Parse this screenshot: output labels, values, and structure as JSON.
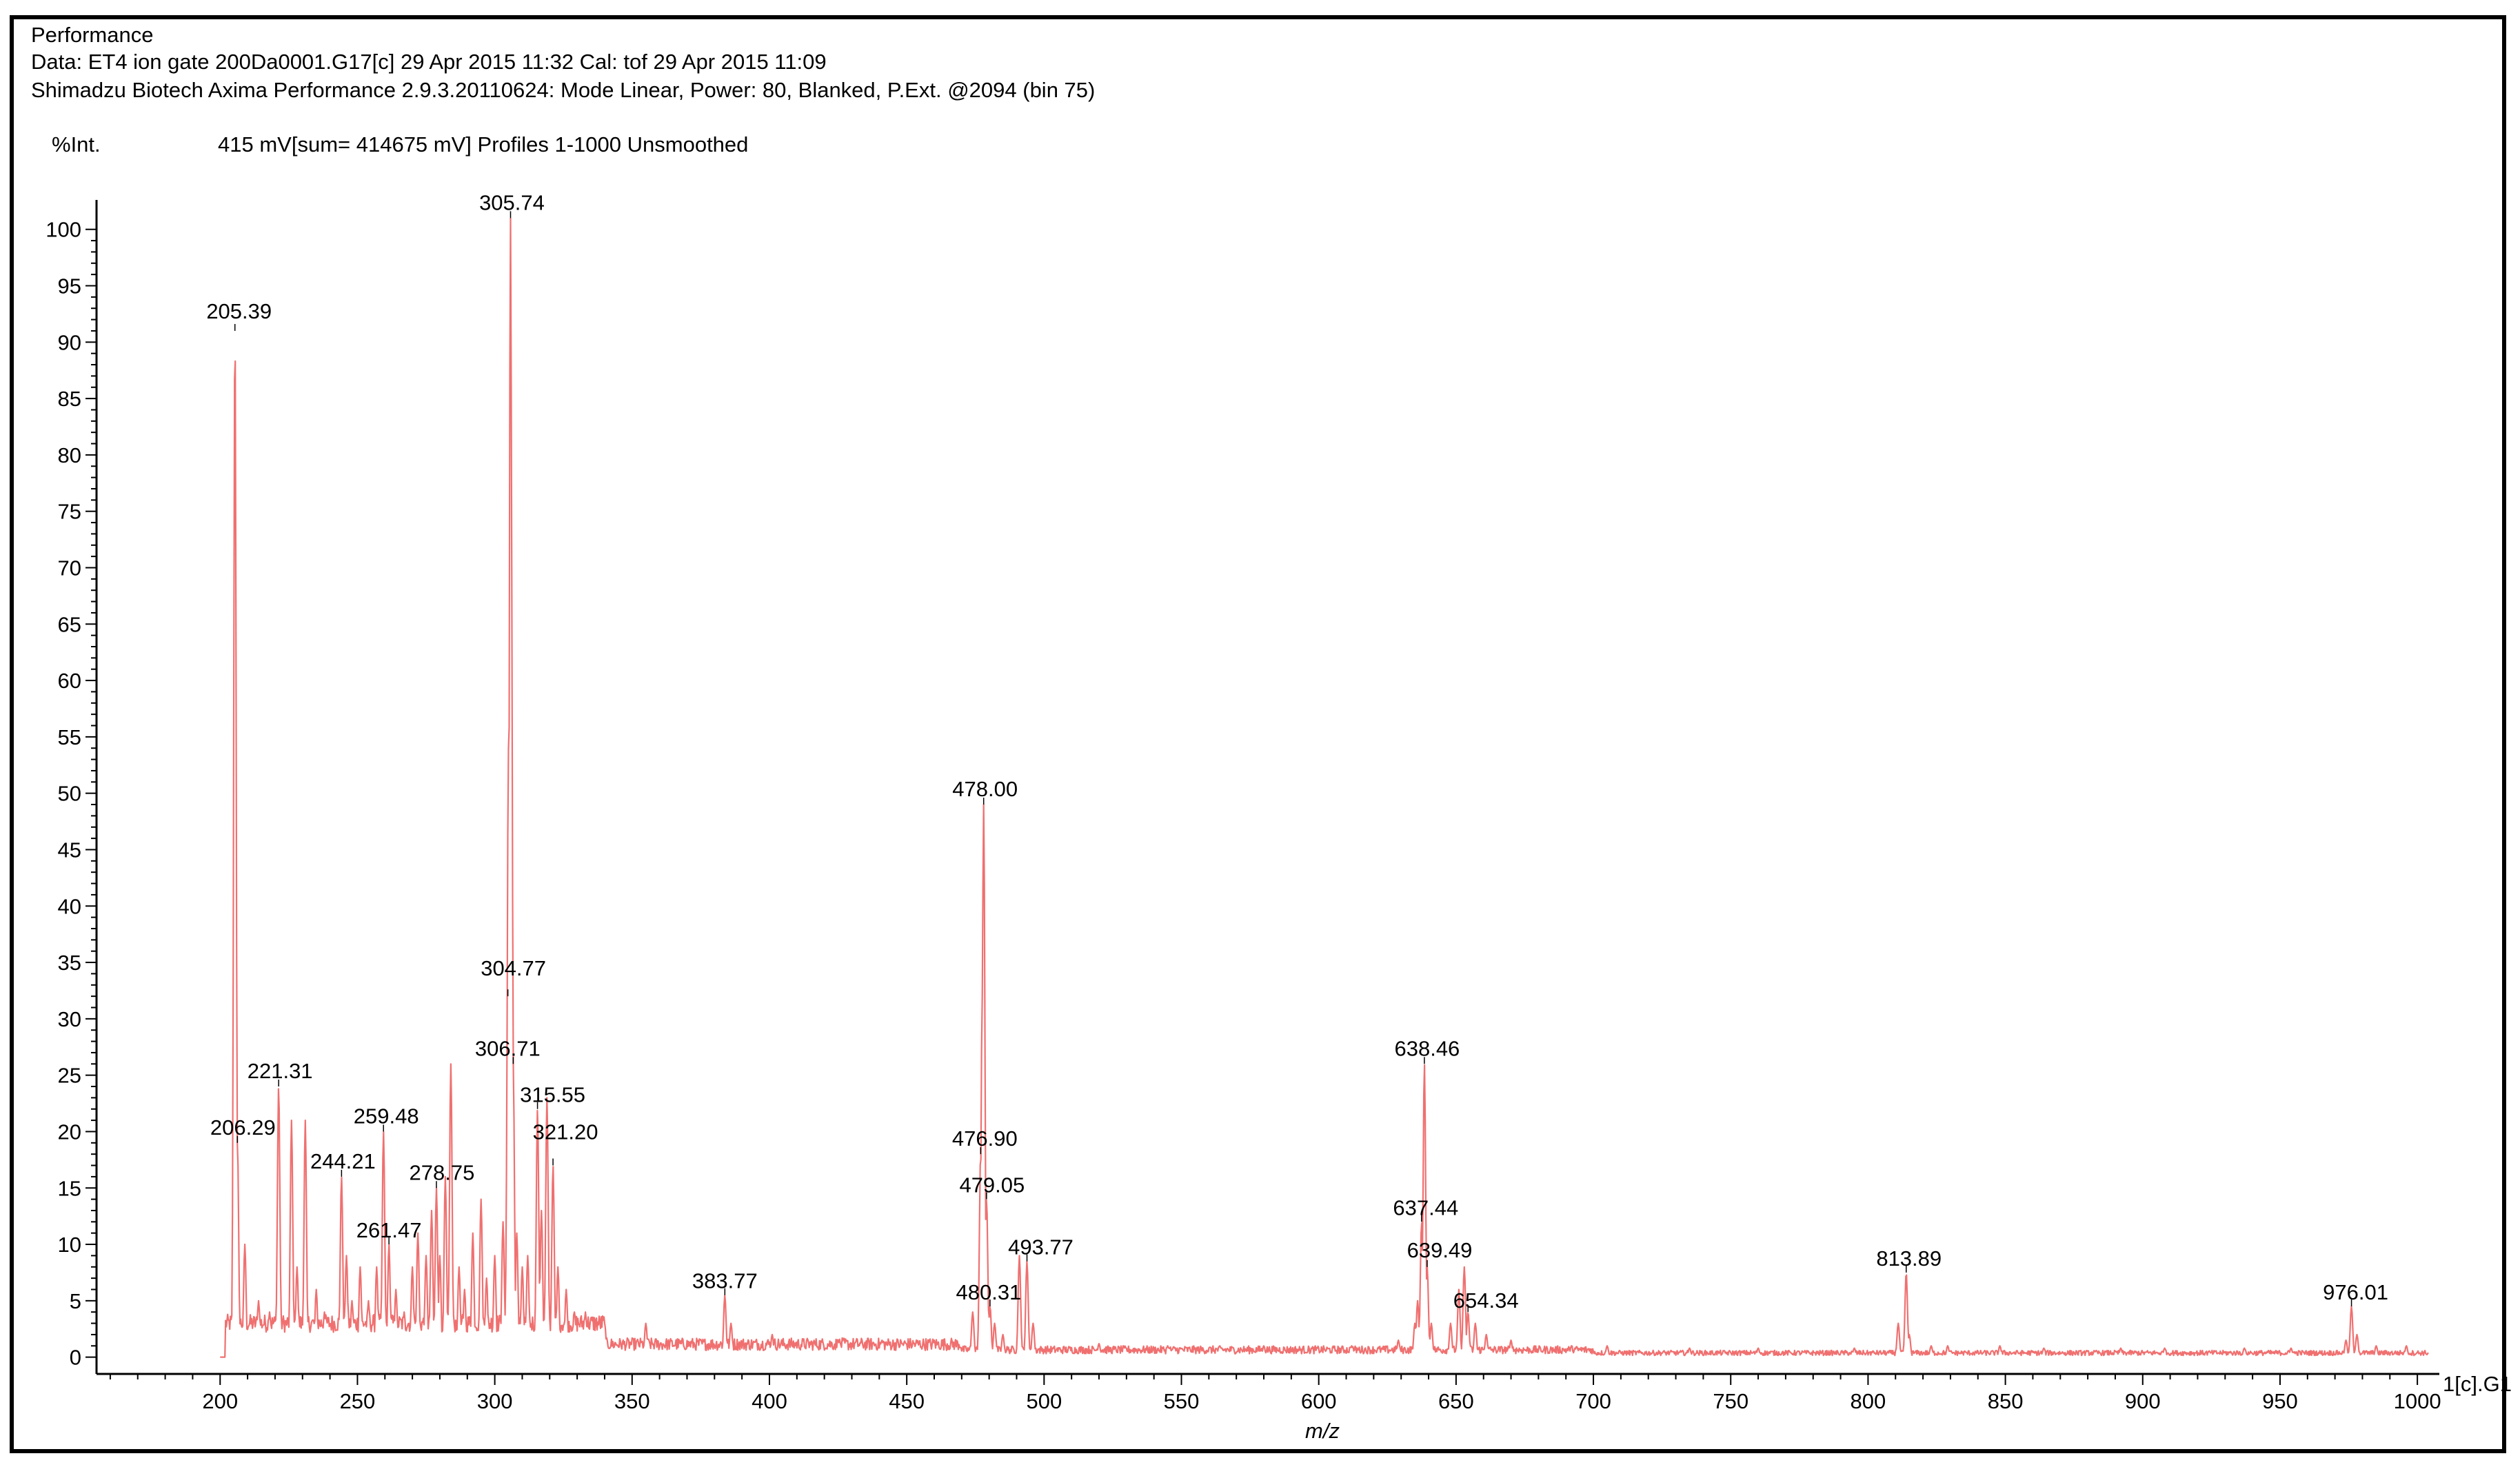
{
  "header": {
    "title": "Performance",
    "data_line": "Data: ET4 ion gate 200Da0001.G17[c] 29 Apr 2015 11:32 Cal: tof 29 Apr 2015 11:09",
    "instrument_line": "Shimadzu Biotech Axima Performance 2.9.3.20110624: Mode Linear, Power: 80, Blanked, P.Ext. @2094 (bin 75)",
    "y_unit": "%Int.",
    "summary": "415 mV[sum= 414675 mV]  Profiles 1-1000 Unsmoothed"
  },
  "colors": {
    "trace": "#f07070",
    "axis": "#000000",
    "background": "#ffffff"
  },
  "chart_data": {
    "type": "line",
    "title": "Performance",
    "xlabel": "m/z",
    "ylabel": "%Int.",
    "xlim": [
      155,
      1008
    ],
    "ylim": [
      -1,
      102
    ],
    "x_ticks": [
      200,
      250,
      300,
      350,
      400,
      450,
      500,
      550,
      600,
      650,
      700,
      750,
      800,
      850,
      900,
      950,
      1000
    ],
    "y_ticks": [
      0,
      5,
      10,
      15,
      20,
      25,
      30,
      35,
      40,
      45,
      50,
      55,
      60,
      65,
      70,
      75,
      80,
      85,
      90,
      95,
      100
    ],
    "trace_end_label": "1[c].G1",
    "peaks": [
      {
        "x": 205.39,
        "y": 91,
        "label": "205.39"
      },
      {
        "x": 206.29,
        "y": 19,
        "label": "206.29"
      },
      {
        "x": 221.31,
        "y": 24,
        "label": "221.31"
      },
      {
        "x": 244.21,
        "y": 16,
        "label": "244.21"
      },
      {
        "x": 259.48,
        "y": 20,
        "label": "259.48"
      },
      {
        "x": 261.47,
        "y": 10,
        "label": "261.47"
      },
      {
        "x": 278.75,
        "y": 15,
        "label": "278.75"
      },
      {
        "x": 304.77,
        "y": 32,
        "label": "304.77"
      },
      {
        "x": 305.74,
        "y": 101,
        "label": "305.74"
      },
      {
        "x": 306.71,
        "y": 26,
        "label": "306.71"
      },
      {
        "x": 315.55,
        "y": 22,
        "label": "315.55"
      },
      {
        "x": 321.2,
        "y": 17,
        "label": "321.20"
      },
      {
        "x": 383.77,
        "y": 5.5,
        "label": "383.77"
      },
      {
        "x": 476.9,
        "y": 18,
        "label": "476.90"
      },
      {
        "x": 478.0,
        "y": 49,
        "label": "478.00"
      },
      {
        "x": 479.05,
        "y": 14,
        "label": "479.05"
      },
      {
        "x": 480.31,
        "y": 4.5,
        "label": "480.31"
      },
      {
        "x": 493.77,
        "y": 8.5,
        "label": "493.77"
      },
      {
        "x": 637.44,
        "y": 12,
        "label": "637.44"
      },
      {
        "x": 638.46,
        "y": 26,
        "label": "638.46"
      },
      {
        "x": 639.49,
        "y": 8,
        "label": "639.49"
      },
      {
        "x": 654.34,
        "y": 4,
        "label": "654.34"
      },
      {
        "x": 813.89,
        "y": 7.5,
        "label": "813.89"
      },
      {
        "x": 976.01,
        "y": 4.5,
        "label": "976.01"
      }
    ],
    "unlabeled_peaks": [
      {
        "x": 209,
        "y": 10
      },
      {
        "x": 214,
        "y": 5
      },
      {
        "x": 218,
        "y": 4
      },
      {
        "x": 226,
        "y": 21
      },
      {
        "x": 228,
        "y": 8
      },
      {
        "x": 231,
        "y": 21
      },
      {
        "x": 235,
        "y": 6
      },
      {
        "x": 238,
        "y": 4
      },
      {
        "x": 246,
        "y": 9
      },
      {
        "x": 248,
        "y": 5
      },
      {
        "x": 251,
        "y": 8
      },
      {
        "x": 254,
        "y": 5
      },
      {
        "x": 257,
        "y": 8
      },
      {
        "x": 264,
        "y": 6
      },
      {
        "x": 267,
        "y": 4
      },
      {
        "x": 270,
        "y": 8
      },
      {
        "x": 272,
        "y": 11
      },
      {
        "x": 275,
        "y": 9
      },
      {
        "x": 277,
        "y": 13
      },
      {
        "x": 280,
        "y": 9
      },
      {
        "x": 282,
        "y": 16
      },
      {
        "x": 284,
        "y": 26
      },
      {
        "x": 287,
        "y": 8
      },
      {
        "x": 289,
        "y": 6
      },
      {
        "x": 292,
        "y": 11
      },
      {
        "x": 295,
        "y": 14
      },
      {
        "x": 297,
        "y": 7
      },
      {
        "x": 300,
        "y": 9
      },
      {
        "x": 303,
        "y": 12
      },
      {
        "x": 305,
        "y": 54
      },
      {
        "x": 306,
        "y": 75
      },
      {
        "x": 308,
        "y": 11
      },
      {
        "x": 310,
        "y": 8
      },
      {
        "x": 312,
        "y": 9
      },
      {
        "x": 317,
        "y": 13
      },
      {
        "x": 319,
        "y": 23
      },
      {
        "x": 323,
        "y": 8
      },
      {
        "x": 326,
        "y": 6
      },
      {
        "x": 329,
        "y": 4
      },
      {
        "x": 333,
        "y": 4
      },
      {
        "x": 340,
        "y": 3
      },
      {
        "x": 355,
        "y": 3
      },
      {
        "x": 386,
        "y": 3
      },
      {
        "x": 401,
        "y": 2
      },
      {
        "x": 425,
        "y": 1.5
      },
      {
        "x": 441,
        "y": 1.5
      },
      {
        "x": 460,
        "y": 1.5
      },
      {
        "x": 474,
        "y": 4
      },
      {
        "x": 477.5,
        "y": 32
      },
      {
        "x": 482,
        "y": 3
      },
      {
        "x": 485,
        "y": 2
      },
      {
        "x": 491,
        "y": 9
      },
      {
        "x": 496,
        "y": 3
      },
      {
        "x": 520,
        "y": 1.2
      },
      {
        "x": 545,
        "y": 1
      },
      {
        "x": 580,
        "y": 1
      },
      {
        "x": 612,
        "y": 1
      },
      {
        "x": 629,
        "y": 1.5
      },
      {
        "x": 635,
        "y": 3
      },
      {
        "x": 636,
        "y": 5
      },
      {
        "x": 641,
        "y": 3
      },
      {
        "x": 648,
        "y": 3
      },
      {
        "x": 651,
        "y": 6
      },
      {
        "x": 653,
        "y": 8
      },
      {
        "x": 657,
        "y": 3
      },
      {
        "x": 661,
        "y": 2
      },
      {
        "x": 670,
        "y": 1.5
      },
      {
        "x": 692,
        "y": 1
      },
      {
        "x": 705,
        "y": 1
      },
      {
        "x": 735,
        "y": 0.8
      },
      {
        "x": 760,
        "y": 0.8
      },
      {
        "x": 795,
        "y": 0.8
      },
      {
        "x": 811,
        "y": 3
      },
      {
        "x": 815,
        "y": 2
      },
      {
        "x": 823,
        "y": 1
      },
      {
        "x": 829,
        "y": 1
      },
      {
        "x": 848,
        "y": 1
      },
      {
        "x": 864,
        "y": 0.8
      },
      {
        "x": 892,
        "y": 0.8
      },
      {
        "x": 908,
        "y": 0.8
      },
      {
        "x": 937,
        "y": 0.8
      },
      {
        "x": 954,
        "y": 0.8
      },
      {
        "x": 974,
        "y": 1.5
      },
      {
        "x": 978,
        "y": 2
      },
      {
        "x": 985,
        "y": 1
      },
      {
        "x": 996,
        "y": 1
      }
    ]
  }
}
